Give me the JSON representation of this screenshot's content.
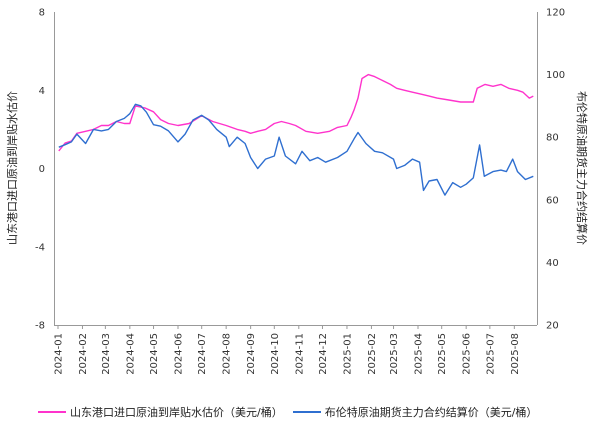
{
  "chart_data": {
    "type": "line",
    "y_left": {
      "label": "山东港口进口原油到岸贴水估价",
      "ticks": [
        "8",
        "4",
        "0",
        "-4",
        "-8"
      ],
      "range": [
        -8,
        8
      ]
    },
    "y_right": {
      "label": "布伦特原油期货主力合约结算价",
      "ticks": [
        "120",
        "100",
        "80",
        "60",
        "40",
        "20"
      ],
      "range": [
        20,
        120
      ]
    },
    "x_ticks": [
      "2024-01",
      "2024-02",
      "2024-03",
      "2024-04",
      "2024-05",
      "2024-06",
      "2024-07",
      "2024-08",
      "2024-09",
      "2024-10",
      "2024-11",
      "2024-12",
      "2025-01",
      "2025-02",
      "2025-03",
      "2025-04",
      "2025-05",
      "2025-06",
      "2025-07",
      "2025-08"
    ],
    "grid": false,
    "legend_position": "bottom",
    "series": [
      {
        "name": "山东港口进口原油到岸贴水估价（美元/桶）",
        "axis": "left",
        "color": "#ff33cc",
        "points": [
          [
            "2024-01-02",
            0.9
          ],
          [
            "2024-01-10",
            1.3
          ],
          [
            "2024-01-18",
            1.4
          ],
          [
            "2024-01-25",
            1.8
          ],
          [
            "2024-02-05",
            1.9
          ],
          [
            "2024-02-15",
            2.0
          ],
          [
            "2024-02-25",
            2.2
          ],
          [
            "2024-03-05",
            2.2
          ],
          [
            "2024-03-15",
            2.4
          ],
          [
            "2024-03-25",
            2.3
          ],
          [
            "2024-04-01",
            2.3
          ],
          [
            "2024-04-08",
            3.2
          ],
          [
            "2024-04-20",
            3.1
          ],
          [
            "2024-05-01",
            2.9
          ],
          [
            "2024-05-10",
            2.5
          ],
          [
            "2024-05-20",
            2.3
          ],
          [
            "2024-06-01",
            2.2
          ],
          [
            "2024-06-15",
            2.3
          ],
          [
            "2024-07-01",
            2.7
          ],
          [
            "2024-07-15",
            2.4
          ],
          [
            "2024-08-01",
            2.2
          ],
          [
            "2024-08-15",
            2.0
          ],
          [
            "2024-08-25",
            1.9
          ],
          [
            "2024-09-01",
            1.8
          ],
          [
            "2024-09-10",
            1.9
          ],
          [
            "2024-09-20",
            2.0
          ],
          [
            "2024-10-01",
            2.3
          ],
          [
            "2024-10-10",
            2.4
          ],
          [
            "2024-10-20",
            2.3
          ],
          [
            "2024-10-28",
            2.2
          ],
          [
            "2024-11-10",
            1.9
          ],
          [
            "2024-11-25",
            1.8
          ],
          [
            "2024-12-10",
            1.9
          ],
          [
            "2024-12-20",
            2.1
          ],
          [
            "2025-01-01",
            2.2
          ],
          [
            "2025-01-06",
            2.6
          ],
          [
            "2025-01-10",
            3.0
          ],
          [
            "2025-01-15",
            3.6
          ],
          [
            "2025-01-20",
            4.6
          ],
          [
            "2025-01-28",
            4.8
          ],
          [
            "2025-02-05",
            4.7
          ],
          [
            "2025-02-15",
            4.5
          ],
          [
            "2025-02-25",
            4.3
          ],
          [
            "2025-03-05",
            4.1
          ],
          [
            "2025-03-15",
            4.0
          ],
          [
            "2025-03-25",
            3.9
          ],
          [
            "2025-04-05",
            3.8
          ],
          [
            "2025-04-15",
            3.7
          ],
          [
            "2025-04-25",
            3.6
          ],
          [
            "2025-05-10",
            3.5
          ],
          [
            "2025-05-25",
            3.4
          ],
          [
            "2025-06-05",
            3.4
          ],
          [
            "2025-06-10",
            3.4
          ],
          [
            "2025-06-15",
            4.1
          ],
          [
            "2025-06-25",
            4.3
          ],
          [
            "2025-07-05",
            4.2
          ],
          [
            "2025-07-15",
            4.3
          ],
          [
            "2025-07-25",
            4.1
          ],
          [
            "2025-08-05",
            4.0
          ],
          [
            "2025-08-12",
            3.9
          ],
          [
            "2025-08-20",
            3.6
          ],
          [
            "2025-08-25",
            3.7
          ]
        ]
      },
      {
        "name": "布伦特原油期货主力合约结算价（美元/桶）",
        "axis": "right",
        "color": "#2f6fd0",
        "points": [
          [
            "2024-01-02",
            76.8
          ],
          [
            "2024-01-10",
            77.6
          ],
          [
            "2024-01-18",
            78.5
          ],
          [
            "2024-01-25",
            81.0
          ],
          [
            "2024-02-05",
            78.0
          ],
          [
            "2024-02-15",
            82.5
          ],
          [
            "2024-02-25",
            82.0
          ],
          [
            "2024-03-05",
            82.5
          ],
          [
            "2024-03-15",
            85.0
          ],
          [
            "2024-03-25",
            86.0
          ],
          [
            "2024-04-01",
            87.5
          ],
          [
            "2024-04-08",
            90.5
          ],
          [
            "2024-04-15",
            90.0
          ],
          [
            "2024-04-22",
            88.0
          ],
          [
            "2024-05-01",
            84.0
          ],
          [
            "2024-05-10",
            83.5
          ],
          [
            "2024-05-20",
            82.0
          ],
          [
            "2024-06-01",
            78.5
          ],
          [
            "2024-06-10",
            81.0
          ],
          [
            "2024-06-20",
            85.5
          ],
          [
            "2024-07-01",
            87.0
          ],
          [
            "2024-07-10",
            85.5
          ],
          [
            "2024-07-20",
            82.5
          ],
          [
            "2024-08-01",
            80.0
          ],
          [
            "2024-08-05",
            77.0
          ],
          [
            "2024-08-15",
            80.0
          ],
          [
            "2024-08-25",
            78.0
          ],
          [
            "2024-09-01",
            73.5
          ],
          [
            "2024-09-10",
            70.0
          ],
          [
            "2024-09-20",
            73.0
          ],
          [
            "2024-10-01",
            74.0
          ],
          [
            "2024-10-07",
            80.0
          ],
          [
            "2024-10-15",
            74.0
          ],
          [
            "2024-10-28",
            71.5
          ],
          [
            "2024-11-05",
            75.5
          ],
          [
            "2024-11-15",
            72.5
          ],
          [
            "2024-11-25",
            73.5
          ],
          [
            "2024-12-05",
            72.0
          ],
          [
            "2024-12-20",
            73.5
          ],
          [
            "2025-01-01",
            75.5
          ],
          [
            "2025-01-10",
            79.5
          ],
          [
            "2025-01-15",
            81.5
          ],
          [
            "2025-01-25",
            78.0
          ],
          [
            "2025-02-05",
            75.5
          ],
          [
            "2025-02-15",
            75.0
          ],
          [
            "2025-03-01",
            73.0
          ],
          [
            "2025-03-05",
            70.0
          ],
          [
            "2025-03-15",
            71.0
          ],
          [
            "2025-03-25",
            73.0
          ],
          [
            "2025-04-03",
            72.0
          ],
          [
            "2025-04-08",
            63.0
          ],
          [
            "2025-04-15",
            66.0
          ],
          [
            "2025-04-25",
            66.5
          ],
          [
            "2025-05-05",
            61.5
          ],
          [
            "2025-05-15",
            65.5
          ],
          [
            "2025-05-25",
            64.0
          ],
          [
            "2025-06-01",
            65.0
          ],
          [
            "2025-06-10",
            67.0
          ],
          [
            "2025-06-18",
            77.5
          ],
          [
            "2025-06-24",
            67.5
          ],
          [
            "2025-07-05",
            69.0
          ],
          [
            "2025-07-15",
            69.5
          ],
          [
            "2025-07-22",
            69.0
          ],
          [
            "2025-07-30",
            73.0
          ],
          [
            "2025-08-05",
            69.0
          ],
          [
            "2025-08-15",
            66.5
          ],
          [
            "2025-08-25",
            67.5
          ]
        ]
      }
    ]
  }
}
